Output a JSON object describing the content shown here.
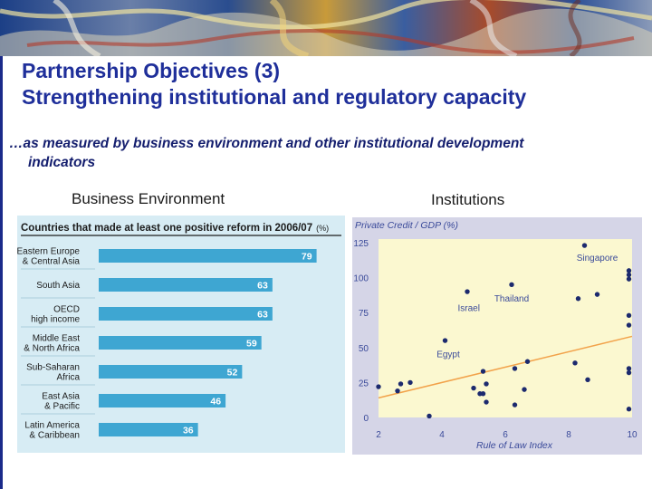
{
  "slide": {
    "title_line1": "Partnership Objectives (3)",
    "title_line2": "Strengthening institutional and regulatory capacity",
    "subtitle_line1": "…as measured by business environment and other institutional development",
    "subtitle_line2": "indicators",
    "left_heading": "Business Environment",
    "right_heading": "Institutions"
  },
  "colors": {
    "title": "#1f2f9a",
    "bar": "#3ea6d2",
    "left_panel_bg": "#d7ecf4",
    "right_panel_bg": "#d5d5e7",
    "plot_bg": "#fbf8d0",
    "point": "#1c2a6e",
    "trendline": "#f2a24a",
    "right_labels": "#3a4a9a"
  },
  "chart_data": [
    {
      "type": "bar",
      "orientation": "horizontal",
      "title": "Countries that made at least one positive reform in 2006/07",
      "title_suffix": "(%)",
      "categories": [
        [
          "Eastern Europe",
          "& Central Asia"
        ],
        [
          "South Asia"
        ],
        [
          "OECD",
          "high income"
        ],
        [
          "Middle East",
          "& North Africa"
        ],
        [
          "Sub-Saharan",
          "Africa"
        ],
        [
          "East Asia",
          "& Pacific"
        ],
        [
          "Latin America",
          "& Caribbean"
        ]
      ],
      "values": [
        79,
        63,
        63,
        59,
        52,
        46,
        36
      ],
      "data_labels": [
        "79",
        "63",
        "63",
        "59",
        "52",
        "46",
        "36"
      ],
      "xlim": [
        0,
        88
      ]
    },
    {
      "type": "scatter",
      "title": "Private Credit / GDP (%)",
      "xlabel": "Rule of Law Index",
      "xlim": [
        2,
        10
      ],
      "ylim": [
        0,
        125
      ],
      "xticks": [
        "2",
        "4",
        "6",
        "8",
        "10"
      ],
      "yticks": [
        "0",
        "25",
        "50",
        "75",
        "100",
        "125"
      ],
      "points": [
        [
          2.0,
          22
        ],
        [
          2.6,
          19
        ],
        [
          2.7,
          24
        ],
        [
          3.0,
          25
        ],
        [
          3.6,
          1
        ],
        [
          4.1,
          55
        ],
        [
          4.8,
          90
        ],
        [
          5.0,
          21
        ],
        [
          5.2,
          17
        ],
        [
          5.3,
          33
        ],
        [
          5.3,
          17
        ],
        [
          5.4,
          11
        ],
        [
          5.4,
          24
        ],
        [
          6.2,
          95
        ],
        [
          6.3,
          35
        ],
        [
          6.3,
          9
        ],
        [
          6.6,
          20
        ],
        [
          6.7,
          40
        ],
        [
          8.2,
          39
        ],
        [
          8.3,
          85
        ],
        [
          8.5,
          123
        ],
        [
          8.6,
          27
        ],
        [
          8.9,
          88
        ],
        [
          9.9,
          105
        ],
        [
          9.9,
          102
        ],
        [
          9.9,
          99
        ],
        [
          9.9,
          73
        ],
        [
          9.9,
          66
        ],
        [
          9.9,
          35
        ],
        [
          9.9,
          32
        ],
        [
          9.9,
          6
        ]
      ],
      "annotations": [
        {
          "text": "Singapore",
          "x": 8.9,
          "y": 112
        },
        {
          "text": "Thailand",
          "x": 6.2,
          "y": 83
        },
        {
          "text": "Israel",
          "x": 4.85,
          "y": 76
        },
        {
          "text": "Egypt",
          "x": 4.2,
          "y": 43
        }
      ],
      "trendline": {
        "from": [
          2,
          14
        ],
        "to": [
          10,
          58
        ]
      }
    }
  ]
}
